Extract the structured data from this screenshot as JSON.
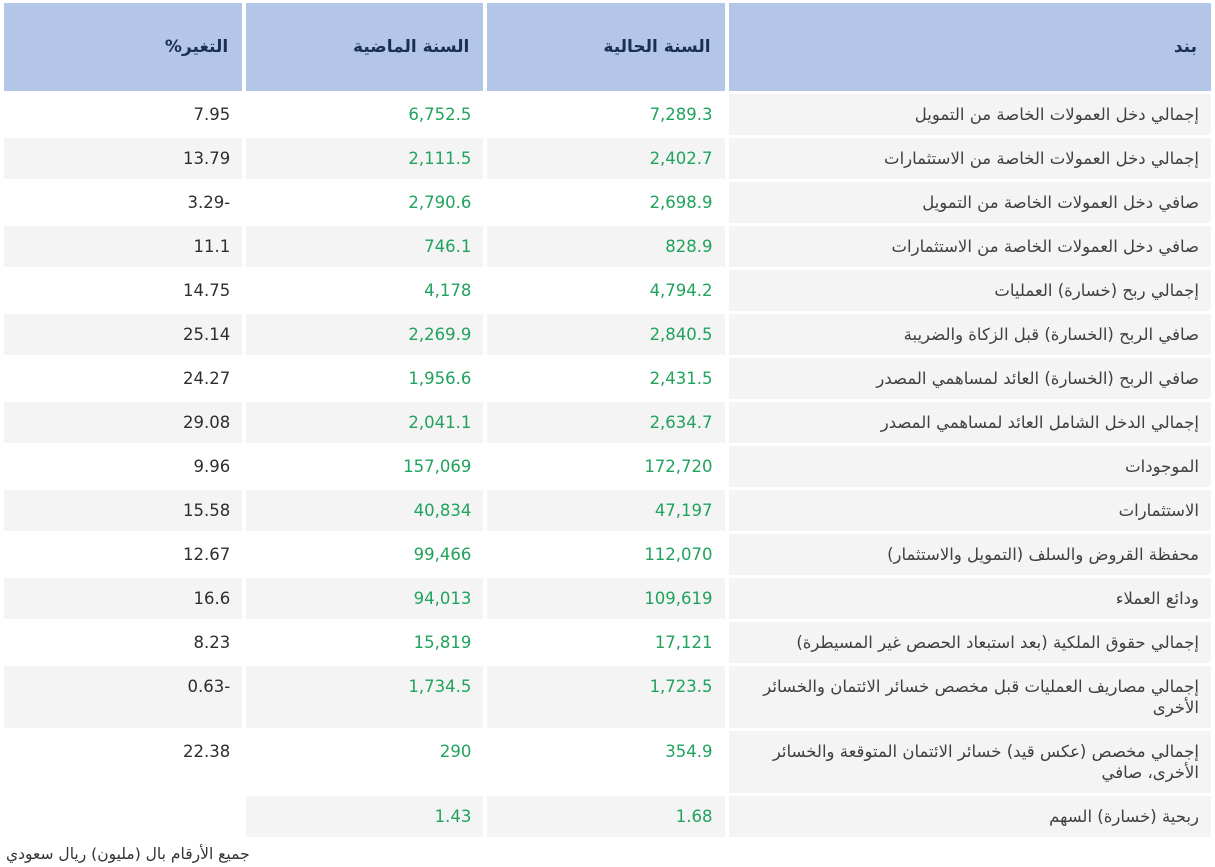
{
  "table": {
    "columns": [
      {
        "key": "item",
        "label": "بند"
      },
      {
        "key": "current",
        "label": "السنة الحالية"
      },
      {
        "key": "previous",
        "label": "السنة الماضية"
      },
      {
        "key": "change",
        "label": "التغير%"
      }
    ],
    "rows": [
      {
        "item": "إجمالي دخل العمولات الخاصة من التمويل",
        "current": "7,289.3",
        "previous": "6,752.5",
        "change": "7.95"
      },
      {
        "item": "إجمالي دخل العمولات الخاصة من الاستثمارات",
        "current": "2,402.7",
        "previous": "2,111.5",
        "change": "13.79"
      },
      {
        "item": "صافي دخل العمولات الخاصة من التمويل",
        "current": "2,698.9",
        "previous": "2,790.6",
        "change": "-3.29"
      },
      {
        "item": "صافي دخل العمولات الخاصة من الاستثمارات",
        "current": "828.9",
        "previous": "746.1",
        "change": "11.1"
      },
      {
        "item": "إجمالي ربح (خسارة) العمليات",
        "current": "4,794.2",
        "previous": "4,178",
        "change": "14.75"
      },
      {
        "item": "صافي الربح (الخسارة) قبل الزكاة والضريبة",
        "current": "2,840.5",
        "previous": "2,269.9",
        "change": "25.14"
      },
      {
        "item": "صافي الربح (الخسارة) العائد لمساهمي المصدر",
        "current": "2,431.5",
        "previous": "1,956.6",
        "change": "24.27"
      },
      {
        "item": "إجمالي الدخل الشامل العائد لمساهمي المصدر",
        "current": "2,634.7",
        "previous": "2,041.1",
        "change": "29.08"
      },
      {
        "item": "الموجودات",
        "current": "172,720",
        "previous": "157,069",
        "change": "9.96"
      },
      {
        "item": "الاستثمارات",
        "current": "47,197",
        "previous": "40,834",
        "change": "15.58"
      },
      {
        "item": "محفظة القروض والسلف (التمويل والاستثمار)",
        "current": "112,070",
        "previous": "99,466",
        "change": "12.67"
      },
      {
        "item": "ودائع العملاء",
        "current": "109,619",
        "previous": "94,013",
        "change": "16.6"
      },
      {
        "item": "إجمالي حقوق الملكية (بعد استبعاد الحصص غير المسيطرة)",
        "current": "17,121",
        "previous": "15,819",
        "change": "8.23"
      },
      {
        "item": "إجمالي مصاريف العمليات قبل مخصص خسائر الائتمان والخسائر الأخرى",
        "current": "1,723.5",
        "previous": "1,734.5",
        "change": "-0.63"
      },
      {
        "item": "إجمالي مخصص (عكس قيد) خسائر الائتمان المتوقعة والخسائر الأخرى، صافي",
        "current": "354.9",
        "previous": "290",
        "change": "22.38"
      },
      {
        "item": "ربحية (خسارة) السهم",
        "current": "1.68",
        "previous": "1.43",
        "change": ""
      }
    ],
    "footnote": "جميع الأرقام بال (مليون) ريال سعودي"
  },
  "colors": {
    "header_bg": "#b3c6e7",
    "header_text": "#1b2f55",
    "row_stripe": "#f4f4f4",
    "value_green": "#20a35c",
    "change_text": "#2e2e2e",
    "footnote_rule": "#c9c9c9"
  },
  "chart_data": {
    "type": "table",
    "title": "",
    "columns": [
      "بند",
      "السنة الحالية",
      "السنة الماضية",
      "التغير%"
    ],
    "rows": [
      [
        "إجمالي دخل العمولات الخاصة من التمويل",
        7289.3,
        6752.5,
        7.95
      ],
      [
        "إجمالي دخل العمولات الخاصة من الاستثمارات",
        2402.7,
        2111.5,
        13.79
      ],
      [
        "صافي دخل العمولات الخاصة من التمويل",
        2698.9,
        2790.6,
        -3.29
      ],
      [
        "صافي دخل العمولات الخاصة من الاستثمارات",
        828.9,
        746.1,
        11.1
      ],
      [
        "إجمالي ربح (خسارة) العمليات",
        4794.2,
        4178,
        14.75
      ],
      [
        "صافي الربح (الخسارة) قبل الزكاة والضريبة",
        2840.5,
        2269.9,
        25.14
      ],
      [
        "صافي الربح (الخسارة) العائد لمساهمي المصدر",
        2431.5,
        1956.6,
        24.27
      ],
      [
        "إجمالي الدخل الشامل العائد لمساهمي المصدر",
        2634.7,
        2041.1,
        29.08
      ],
      [
        "الموجودات",
        172720,
        157069,
        9.96
      ],
      [
        "الاستثمارات",
        47197,
        40834,
        15.58
      ],
      [
        "محفظة القروض والسلف (التمويل والاستثمار)",
        112070,
        99466,
        12.67
      ],
      [
        "ودائع العملاء",
        109619,
        94013,
        16.6
      ],
      [
        "إجمالي حقوق الملكية (بعد استبعاد الحصص غير المسيطرة)",
        17121,
        15819,
        8.23
      ],
      [
        "إجمالي مصاريف العمليات قبل مخصص خسائر الائتمان والخسائر الأخرى",
        1723.5,
        1734.5,
        -0.63
      ],
      [
        "إجمالي مخصص (عكس قيد) خسائر الائتمان المتوقعة والخسائر الأخرى، صافي",
        354.9,
        290,
        22.38
      ],
      [
        "ربحية (خسارة) السهم",
        1.68,
        1.43,
        null
      ]
    ],
    "units_note": "جميع الأرقام بال (مليون) ريال سعودي"
  }
}
